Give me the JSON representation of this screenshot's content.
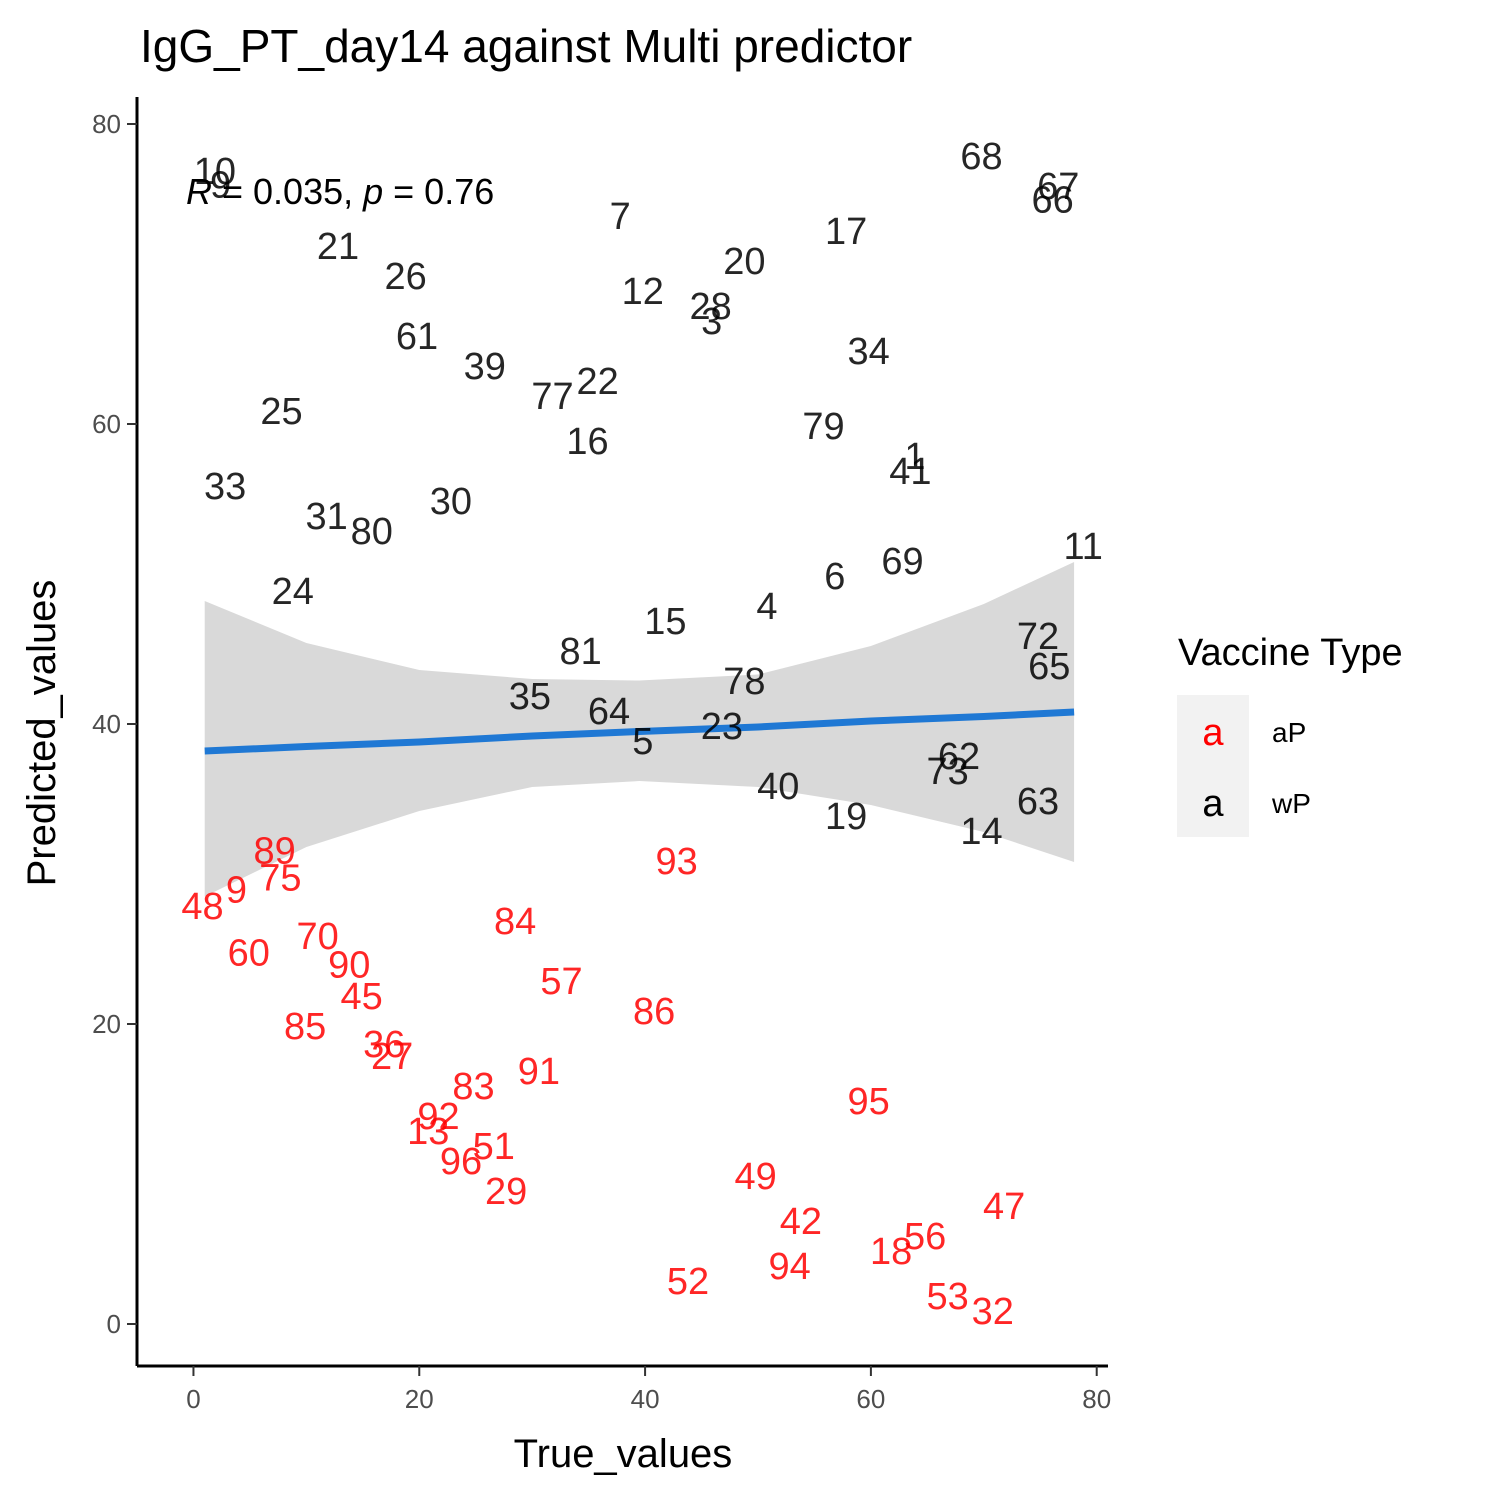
{
  "chart_data": {
    "type": "scatter",
    "title": "IgG_PT_day14 against Multi predictor",
    "xlabel": "True_values",
    "ylabel": "Predicted_values",
    "xlim": [
      -5,
      81
    ],
    "ylim": [
      -2.8,
      81.8
    ],
    "xticks": [
      "0",
      "20",
      "40",
      "60",
      "80"
    ],
    "yticks": [
      "0",
      "20",
      "40",
      "60",
      "80"
    ],
    "grid": false,
    "legend": {
      "title": "Vaccine Type",
      "placement": "right",
      "key_glyph": "a",
      "entries": [
        {
          "label": "aP",
          "color": "#ff0000"
        },
        {
          "label": "wP",
          "color": "#000000"
        }
      ]
    },
    "annotation": {
      "r_italic": "R",
      "r_text": " = 0.035, ",
      "p_italic": "p",
      "p_text": " = 0.76"
    },
    "regression": {
      "color": "#1f78d4",
      "band_color": "#d9d9d9",
      "x": [
        1,
        10,
        20,
        30,
        39.5,
        50,
        60,
        70,
        78
      ],
      "fit": [
        38.2,
        38.5,
        38.8,
        39.2,
        39.5,
        39.8,
        40.2,
        40.5,
        40.8
      ],
      "lower": [
        28.5,
        31.8,
        34.2,
        35.8,
        36.2,
        35.8,
        34.6,
        32.8,
        30.8
      ],
      "upper": [
        48.2,
        45.4,
        43.6,
        43.0,
        42.9,
        43.3,
        45.2,
        48.0,
        50.8
      ]
    },
    "series": [
      {
        "name": "aP",
        "color": "#ff0000",
        "points": [
          {
            "label": "89",
            "x": 7.2,
            "y": 31.5
          },
          {
            "label": "75",
            "x": 7.7,
            "y": 29.7
          },
          {
            "label": "9",
            "x": 3.8,
            "y": 28.9
          },
          {
            "label": "48",
            "x": 0.8,
            "y": 27.8
          },
          {
            "label": "60",
            "x": 4.9,
            "y": 24.7
          },
          {
            "label": "70",
            "x": 11.0,
            "y": 25.8
          },
          {
            "label": "90",
            "x": 13.8,
            "y": 23.9
          },
          {
            "label": "45",
            "x": 14.9,
            "y": 21.8
          },
          {
            "label": "85",
            "x": 9.9,
            "y": 19.8
          },
          {
            "label": "36",
            "x": 16.9,
            "y": 18.6
          },
          {
            "label": "27",
            "x": 17.6,
            "y": 17.8
          },
          {
            "label": "84",
            "x": 28.5,
            "y": 26.8
          },
          {
            "label": "57",
            "x": 32.6,
            "y": 22.8
          },
          {
            "label": "86",
            "x": 40.8,
            "y": 20.8
          },
          {
            "label": "93",
            "x": 42.8,
            "y": 30.8
          },
          {
            "label": "91",
            "x": 30.6,
            "y": 16.8
          },
          {
            "label": "83",
            "x": 24.8,
            "y": 15.8
          },
          {
            "label": "92",
            "x": 21.7,
            "y": 13.8
          },
          {
            "label": "13",
            "x": 20.8,
            "y": 12.8
          },
          {
            "label": "51",
            "x": 26.6,
            "y": 11.8
          },
          {
            "label": "96",
            "x": 23.7,
            "y": 10.8
          },
          {
            "label": "29",
            "x": 27.7,
            "y": 8.8
          },
          {
            "label": "95",
            "x": 59.8,
            "y": 14.8
          },
          {
            "label": "49",
            "x": 49.8,
            "y": 9.8
          },
          {
            "label": "42",
            "x": 53.8,
            "y": 6.8
          },
          {
            "label": "94",
            "x": 52.8,
            "y": 3.8
          },
          {
            "label": "52",
            "x": 43.8,
            "y": 2.8
          },
          {
            "label": "18",
            "x": 61.8,
            "y": 4.8
          },
          {
            "label": "56",
            "x": 64.8,
            "y": 5.8
          },
          {
            "label": "47",
            "x": 71.8,
            "y": 7.8
          },
          {
            "label": "53",
            "x": 66.8,
            "y": 1.8
          },
          {
            "label": "32",
            "x": 70.8,
            "y": 0.8
          }
        ]
      },
      {
        "name": "wP",
        "color": "#000000",
        "points": [
          {
            "label": "10",
            "x": 1.9,
            "y": 76.8
          },
          {
            "label": "9",
            "x": 2.4,
            "y": 75.9
          },
          {
            "label": "21",
            "x": 12.8,
            "y": 71.8
          },
          {
            "label": "26",
            "x": 18.8,
            "y": 69.8
          },
          {
            "label": "61",
            "x": 19.8,
            "y": 65.8
          },
          {
            "label": "39",
            "x": 25.8,
            "y": 63.8
          },
          {
            "label": "77",
            "x": 31.8,
            "y": 61.8
          },
          {
            "label": "22",
            "x": 35.8,
            "y": 62.8
          },
          {
            "label": "16",
            "x": 34.9,
            "y": 58.8
          },
          {
            "label": "7",
            "x": 37.8,
            "y": 73.8
          },
          {
            "label": "12",
            "x": 39.8,
            "y": 68.8
          },
          {
            "label": "28",
            "x": 45.8,
            "y": 67.8
          },
          {
            "label": "3",
            "x": 45.9,
            "y": 66.8
          },
          {
            "label": "20",
            "x": 48.8,
            "y": 70.8
          },
          {
            "label": "17",
            "x": 57.8,
            "y": 72.8
          },
          {
            "label": "68",
            "x": 69.8,
            "y": 77.8
          },
          {
            "label": "67",
            "x": 76.6,
            "y": 75.8
          },
          {
            "label": "66",
            "x": 76.1,
            "y": 74.9
          },
          {
            "label": "34",
            "x": 59.8,
            "y": 64.8
          },
          {
            "label": "79",
            "x": 55.8,
            "y": 59.8
          },
          {
            "label": "1",
            "x": 63.9,
            "y": 57.8
          },
          {
            "label": "41",
            "x": 63.5,
            "y": 56.8
          },
          {
            "label": "25",
            "x": 7.8,
            "y": 60.8
          },
          {
            "label": "33",
            "x": 2.8,
            "y": 55.8
          },
          {
            "label": "30",
            "x": 22.8,
            "y": 54.8
          },
          {
            "label": "31",
            "x": 11.8,
            "y": 53.8
          },
          {
            "label": "80",
            "x": 15.8,
            "y": 52.8
          },
          {
            "label": "11",
            "x": 78.8,
            "y": 51.8
          },
          {
            "label": "69",
            "x": 62.8,
            "y": 50.8
          },
          {
            "label": "6",
            "x": 56.8,
            "y": 49.8
          },
          {
            "label": "24",
            "x": 8.8,
            "y": 48.8
          },
          {
            "label": "4",
            "x": 50.8,
            "y": 47.8
          },
          {
            "label": "15",
            "x": 41.8,
            "y": 46.8
          },
          {
            "label": "81",
            "x": 34.3,
            "y": 44.8
          },
          {
            "label": "72",
            "x": 74.8,
            "y": 45.8
          },
          {
            "label": "65",
            "x": 75.8,
            "y": 43.8
          },
          {
            "label": "78",
            "x": 48.8,
            "y": 42.8
          },
          {
            "label": "35",
            "x": 29.8,
            "y": 41.8
          },
          {
            "label": "64",
            "x": 36.8,
            "y": 40.8
          },
          {
            "label": "23",
            "x": 46.8,
            "y": 39.8
          },
          {
            "label": "5",
            "x": 39.8,
            "y": 38.8
          },
          {
            "label": "62",
            "x": 67.8,
            "y": 37.8
          },
          {
            "label": "73",
            "x": 66.8,
            "y": 36.8
          },
          {
            "label": "40",
            "x": 51.8,
            "y": 35.8
          },
          {
            "label": "19",
            "x": 57.8,
            "y": 33.8
          },
          {
            "label": "63",
            "x": 74.8,
            "y": 34.8
          },
          {
            "label": "14",
            "x": 69.8,
            "y": 32.8
          }
        ]
      }
    ]
  }
}
